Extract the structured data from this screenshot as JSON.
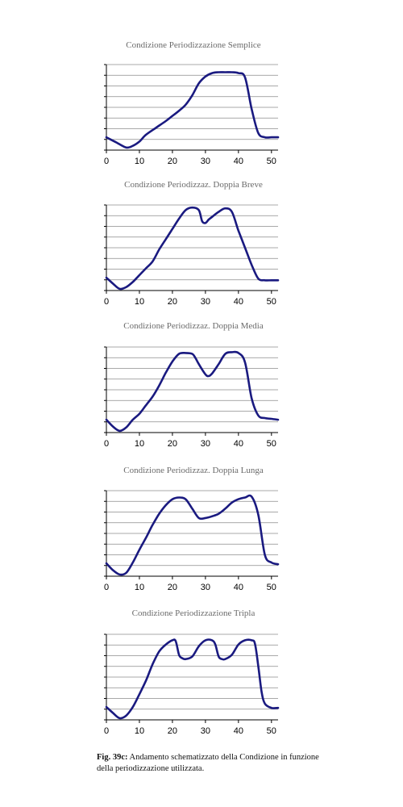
{
  "caption": {
    "label": "Fig. 39c:",
    "text": "Andamento schematizzato della Condizione in funzione della periodizzazione utilizzata."
  },
  "line_color": "#1a1a80",
  "chart_data": [
    {
      "type": "line",
      "title": "Condizione Periodizzazione Semplice",
      "xlim": [
        0,
        52
      ],
      "ylim": [
        0,
        10
      ],
      "xticks": [
        "0",
        "10",
        "20",
        "30",
        "40",
        "50"
      ],
      "grid": true,
      "x": [
        0,
        3,
        6,
        8,
        10,
        12,
        15,
        18,
        20,
        22,
        24,
        26,
        28,
        30,
        32,
        34,
        36,
        38,
        40,
        42,
        44,
        46,
        48,
        50,
        52
      ],
      "y": [
        1.5,
        0.9,
        0.3,
        0.5,
        1.0,
        1.8,
        2.6,
        3.4,
        4.0,
        4.6,
        5.3,
        6.4,
        7.8,
        8.6,
        9.0,
        9.1,
        9.1,
        9.1,
        9.0,
        8.5,
        4.8,
        2.0,
        1.5,
        1.5,
        1.5
      ]
    },
    {
      "type": "line",
      "title": "Condizione Periodizzaz. Doppia Breve",
      "xlim": [
        0,
        52
      ],
      "ylim": [
        0,
        10
      ],
      "xticks": [
        "0",
        "10",
        "20",
        "30",
        "40",
        "50"
      ],
      "grid": true,
      "x": [
        0,
        2,
        4,
        6,
        8,
        10,
        12,
        14,
        16,
        18,
        20,
        22,
        24,
        26,
        28,
        29,
        30,
        31,
        32,
        34,
        36,
        38,
        40,
        42,
        44,
        46,
        48,
        50,
        52
      ],
      "y": [
        1.5,
        0.8,
        0.2,
        0.4,
        1.0,
        1.8,
        2.6,
        3.4,
        4.8,
        6.0,
        7.2,
        8.4,
        9.4,
        9.7,
        9.4,
        8.1,
        7.9,
        8.3,
        8.6,
        9.2,
        9.6,
        9.2,
        7.0,
        5.0,
        3.0,
        1.4,
        1.2,
        1.2,
        1.2
      ]
    },
    {
      "type": "line",
      "title": "Condizione Periodizzaz. Doppia Media",
      "xlim": [
        0,
        52
      ],
      "ylim": [
        0,
        10
      ],
      "xticks": [
        "0",
        "10",
        "20",
        "30",
        "40",
        "50"
      ],
      "grid": true,
      "x": [
        0,
        2,
        4,
        6,
        8,
        10,
        12,
        14,
        16,
        18,
        20,
        22,
        24,
        26,
        27,
        28,
        30,
        31,
        32,
        34,
        36,
        38,
        40,
        42,
        44,
        46,
        48,
        50,
        52
      ],
      "y": [
        1.5,
        0.7,
        0.2,
        0.6,
        1.5,
        2.2,
        3.2,
        4.2,
        5.5,
        7.0,
        8.3,
        9.2,
        9.3,
        9.2,
        8.7,
        8.0,
        6.8,
        6.6,
        6.9,
        8.0,
        9.2,
        9.4,
        9.3,
        8.2,
        4.0,
        2.0,
        1.7,
        1.6,
        1.5
      ]
    },
    {
      "type": "line",
      "title": "Condizione Periodizzaz. Doppia Lunga",
      "xlim": [
        0,
        52
      ],
      "ylim": [
        0,
        10
      ],
      "xticks": [
        "0",
        "10",
        "20",
        "30",
        "40",
        "50"
      ],
      "grid": true,
      "x": [
        0,
        2,
        4,
        6,
        8,
        10,
        12,
        14,
        16,
        18,
        20,
        22,
        24,
        26,
        28,
        30,
        32,
        34,
        36,
        38,
        40,
        42,
        44,
        46,
        48,
        50,
        52
      ],
      "y": [
        1.5,
        0.7,
        0.2,
        0.4,
        1.6,
        3.1,
        4.5,
        6.0,
        7.3,
        8.3,
        9.0,
        9.2,
        9.0,
        7.9,
        6.8,
        6.8,
        7.0,
        7.3,
        7.9,
        8.6,
        9.0,
        9.2,
        9.3,
        7.2,
        2.5,
        1.6,
        1.4
      ]
    },
    {
      "type": "line",
      "title": "Condizione Periodizzazione Tripla",
      "xlim": [
        0,
        52
      ],
      "ylim": [
        0,
        10
      ],
      "xticks": [
        "0",
        "10",
        "20",
        "30",
        "40",
        "50"
      ],
      "grid": true,
      "x": [
        0,
        2,
        4,
        6,
        8,
        10,
        12,
        14,
        16,
        18,
        20,
        21,
        22,
        23,
        24,
        26,
        28,
        30,
        32,
        33,
        34,
        35,
        36,
        38,
        40,
        42,
        44,
        45,
        46,
        47,
        48,
        50,
        52
      ],
      "y": [
        1.5,
        0.8,
        0.2,
        0.5,
        1.5,
        3.0,
        4.6,
        6.5,
        8.0,
        8.8,
        9.3,
        9.2,
        7.6,
        7.2,
        7.1,
        7.4,
        8.6,
        9.3,
        9.3,
        8.8,
        7.4,
        7.1,
        7.1,
        7.6,
        8.8,
        9.3,
        9.3,
        8.9,
        6.3,
        3.3,
        1.9,
        1.4,
        1.4
      ]
    }
  ]
}
